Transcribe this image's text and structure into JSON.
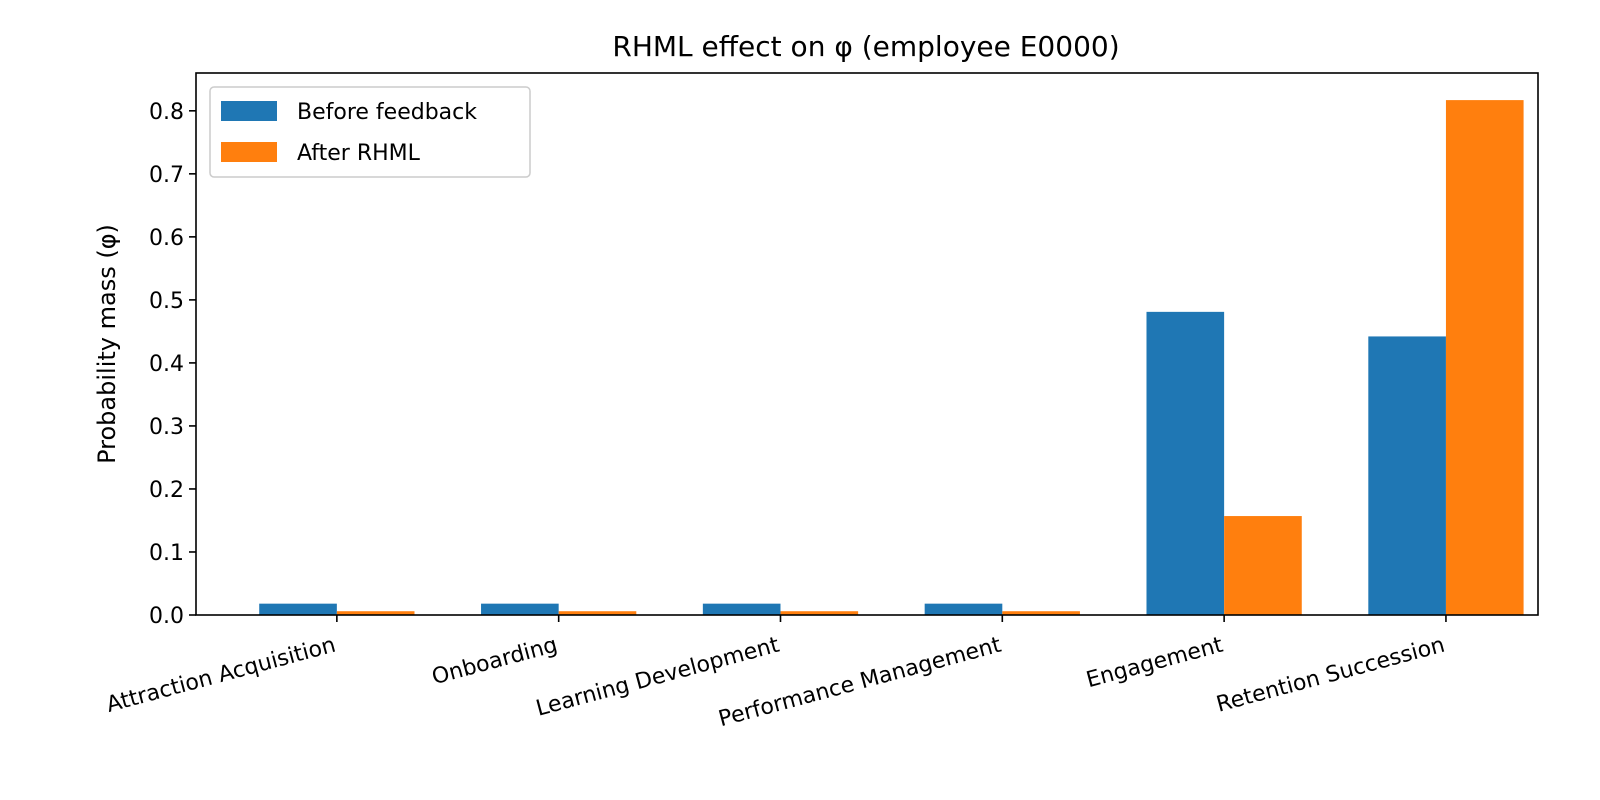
{
  "chart_data": {
    "type": "bar",
    "title": "RHML effect on φ (employee E0000)",
    "xlabel": "",
    "ylabel": "Probability mass (φ)",
    "ylim": [
      0,
      0.86
    ],
    "yticks": [
      0.0,
      0.1,
      0.2,
      0.3,
      0.4,
      0.5,
      0.6,
      0.7,
      0.8
    ],
    "ytick_labels": [
      "0.0",
      "0.1",
      "0.2",
      "0.3",
      "0.4",
      "0.5",
      "0.6",
      "0.7",
      "0.8"
    ],
    "categories": [
      "Attraction Acquisition",
      "Onboarding",
      "Learning Development",
      "Performance Management",
      "Engagement",
      "Retention Succession"
    ],
    "series": [
      {
        "name": "Before feedback",
        "color": "#1f77b4",
        "values": [
          0.018,
          0.018,
          0.018,
          0.018,
          0.481,
          0.442
        ]
      },
      {
        "name": "After RHML",
        "color": "#ff7f0e",
        "values": [
          0.006,
          0.006,
          0.006,
          0.006,
          0.157,
          0.817
        ]
      }
    ],
    "grid": false,
    "legend_position": "top-left"
  }
}
